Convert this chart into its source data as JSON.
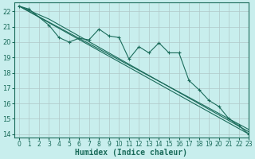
{
  "xlabel": "Humidex (Indice chaleur)",
  "background_color": "#c8eeed",
  "grid_color": "#b0c8c8",
  "line_color": "#1a6b5a",
  "xlim": [
    -0.5,
    23
  ],
  "ylim": [
    13.8,
    22.6
  ],
  "xticks": [
    0,
    1,
    2,
    3,
    4,
    5,
    6,
    7,
    8,
    9,
    10,
    11,
    12,
    13,
    14,
    15,
    16,
    17,
    18,
    19,
    20,
    21,
    22,
    23
  ],
  "yticks": [
    14,
    15,
    16,
    17,
    18,
    19,
    20,
    21,
    22
  ],
  "zigzag_x": [
    0,
    1,
    3,
    4,
    5,
    6,
    7,
    8,
    9,
    10,
    11,
    12,
    13,
    14,
    15,
    16,
    17,
    18,
    19,
    20,
    21,
    22,
    23
  ],
  "zigzag_y": [
    22.35,
    22.15,
    21.1,
    20.3,
    20.0,
    20.25,
    20.15,
    20.85,
    20.4,
    20.3,
    18.9,
    19.7,
    19.3,
    19.95,
    19.3,
    19.3,
    17.5,
    16.9,
    16.2,
    15.8,
    15.0,
    14.55,
    14.0
  ],
  "trend1_x": [
    0,
    23
  ],
  "trend1_y": [
    22.35,
    14.0
  ],
  "trend2_x": [
    0,
    3,
    23
  ],
  "trend2_y": [
    22.35,
    21.5,
    14.15
  ],
  "trend3_x": [
    0,
    3,
    23
  ],
  "trend3_y": [
    22.35,
    21.3,
    14.3
  ]
}
